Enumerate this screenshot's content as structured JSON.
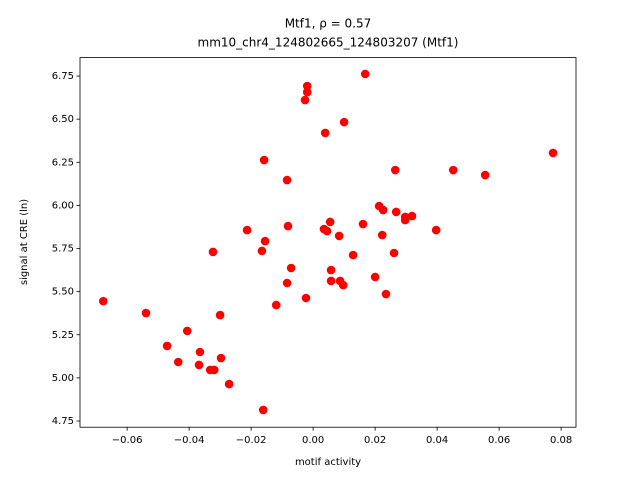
{
  "chart_data": {
    "type": "scatter",
    "title": "Mtf1, ρ = 0.57",
    "subtitle": "mm10_chr4_124802665_124803207 (Mtf1)",
    "x_label": "motif activity",
    "y_label": "signal at CRE (ln)",
    "color": "#ff0000",
    "x": [
      -0.0677,
      -0.0539,
      -0.0406,
      -0.0471,
      -0.0435,
      -0.0365,
      -0.0368,
      -0.0332,
      -0.0319,
      -0.0297,
      -0.03,
      -0.0323,
      -0.0271,
      -0.0161,
      -0.0213,
      -0.0165,
      -0.0155,
      -0.0158,
      -0.0084,
      -0.0081,
      -0.0071,
      -0.0084,
      -0.0119,
      -0.0023,
      -0.0026,
      -0.0019,
      -0.0019,
      0.0039,
      0.01,
      0.0168,
      0.0035,
      0.0045,
      0.0055,
      0.0084,
      0.0058,
      0.0058,
      0.0087,
      0.0097,
      0.0129,
      0.0161,
      0.02,
      0.0213,
      0.0226,
      0.0223,
      0.0235,
      0.0261,
      0.0265,
      0.0268,
      0.0297,
      0.0297,
      0.0319,
      0.0397,
      0.0452,
      0.0555,
      0.0774
    ],
    "values": [
      5.445,
      5.376,
      5.272,
      5.185,
      5.092,
      5.15,
      5.075,
      5.046,
      5.046,
      5.115,
      5.364,
      5.73,
      4.964,
      4.814,
      5.857,
      5.736,
      5.793,
      6.263,
      6.147,
      5.88,
      5.637,
      5.55,
      5.422,
      5.463,
      6.611,
      6.657,
      6.692,
      6.42,
      6.483,
      6.762,
      5.863,
      5.851,
      5.904,
      5.823,
      5.625,
      5.562,
      5.562,
      5.538,
      5.712,
      5.892,
      5.585,
      5.996,
      5.973,
      5.828,
      5.486,
      5.724,
      6.205,
      5.962,
      5.915,
      5.933,
      5.938,
      5.857,
      6.205,
      6.176,
      6.304
    ],
    "xlim": [
      -0.0752,
      0.0848
    ],
    "ylim": [
      4.714,
      6.857
    ],
    "xticks": [
      {
        "value": -0.06,
        "label": "−0.06"
      },
      {
        "value": -0.04,
        "label": "−0.04"
      },
      {
        "value": -0.02,
        "label": "−0.02"
      },
      {
        "value": 0,
        "label": "0.00"
      },
      {
        "value": 0.02,
        "label": "0.02"
      },
      {
        "value": 0.04,
        "label": "0.04"
      },
      {
        "value": 0.06,
        "label": "0.06"
      },
      {
        "value": 0.08,
        "label": "0.08"
      }
    ],
    "yticks": [
      4.75,
      {
        "value": 5,
        "label": "5.00"
      },
      5.25,
      {
        "value": 5.5,
        "label": "5.50"
      },
      5.75,
      {
        "value": 6,
        "label": "6.00"
      },
      6.25,
      {
        "value": 6.5,
        "label": "6.50"
      },
      6.75
    ]
  }
}
